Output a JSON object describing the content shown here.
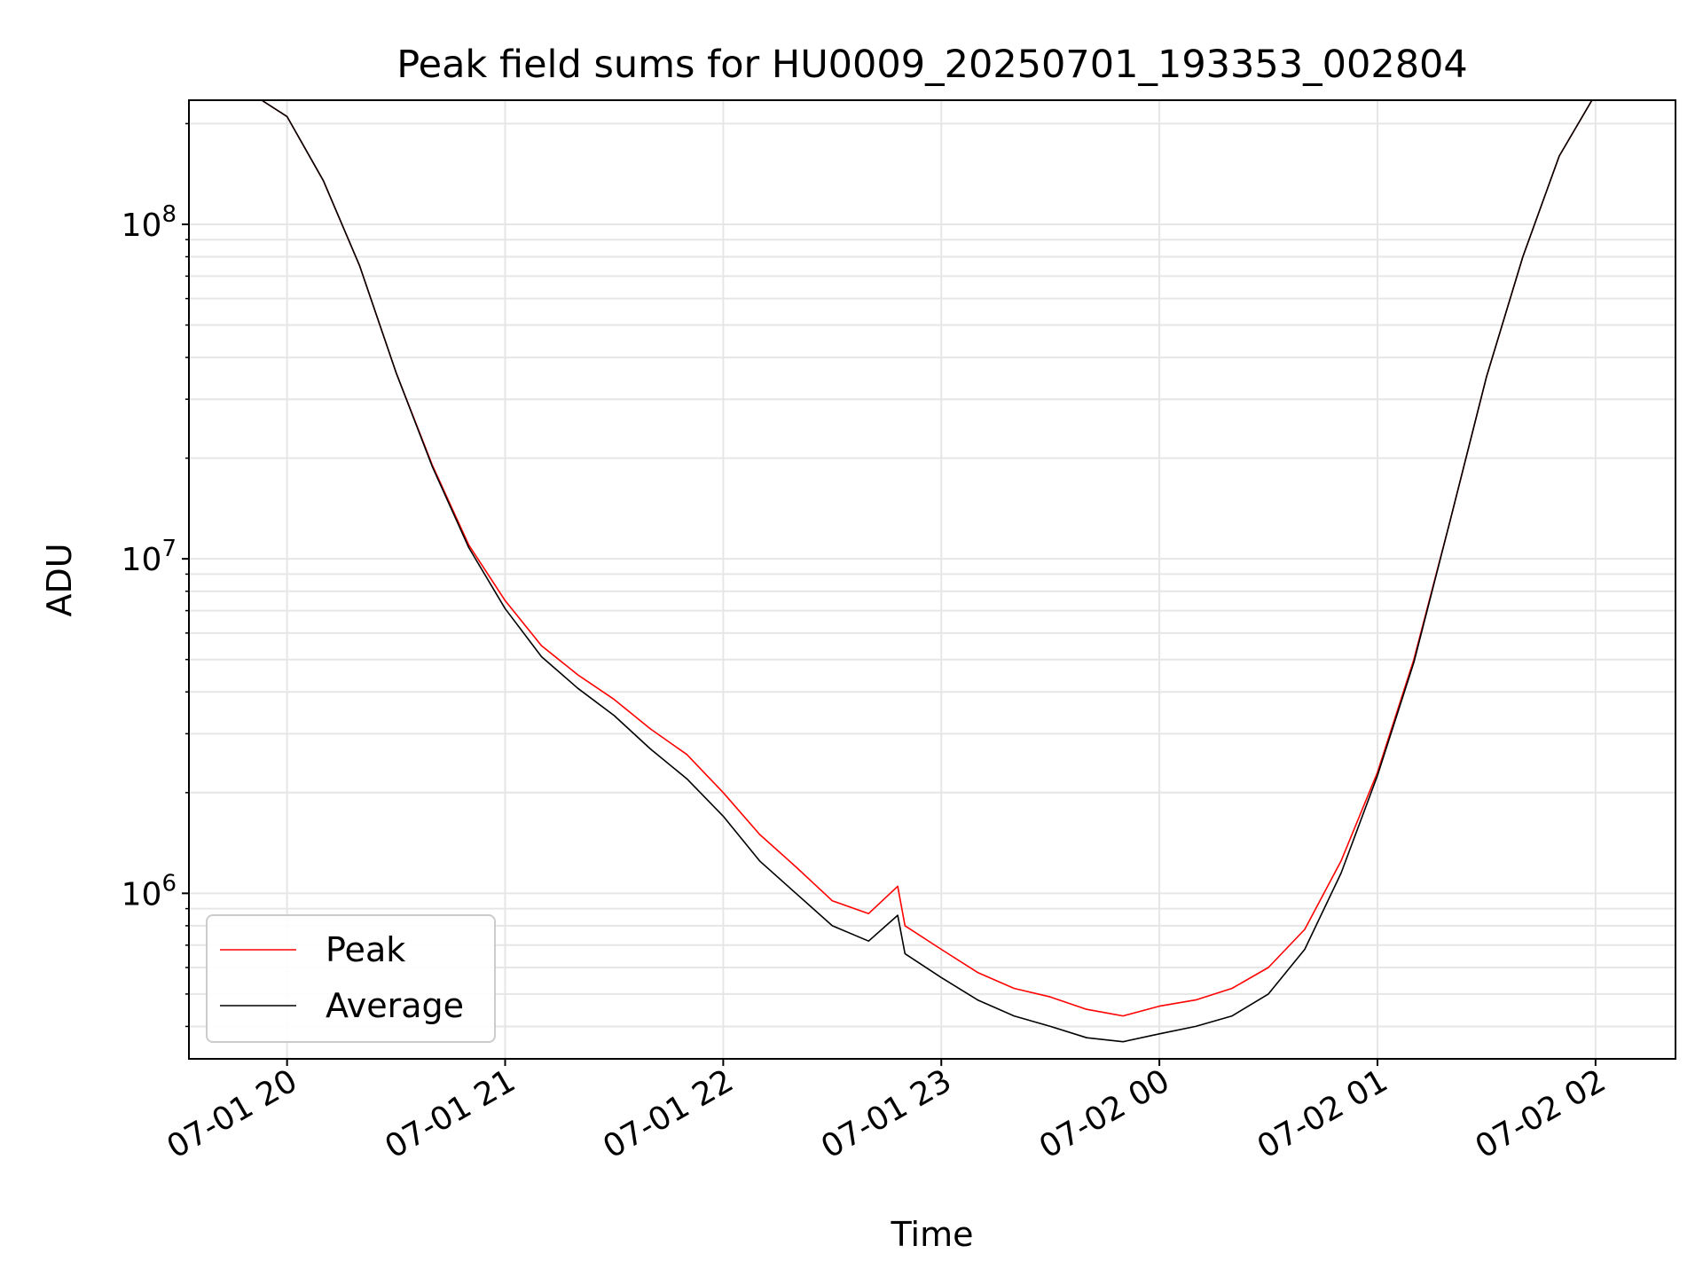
{
  "chart_data": {
    "type": "line",
    "title": "Peak field sums for HU0009_20250701_193353_002804",
    "xlabel": "Time",
    "ylabel": "ADU",
    "x_ticks": [
      "07-01 20",
      "07-01 21",
      "07-01 22",
      "07-01 23",
      "07-02 00",
      "07-02 01",
      "07-02 02"
    ],
    "y_ticks": [
      {
        "base": "10",
        "exp": "6",
        "value": 1000000
      },
      {
        "base": "10",
        "exp": "7",
        "value": 10000000
      },
      {
        "base": "10",
        "exp": "8",
        "value": 100000000
      }
    ],
    "x_range": [
      "2025-07-01 19:33",
      "2025-07-02 02:22"
    ],
    "y_scale": "log",
    "ylim": [
      320000,
      235000000
    ],
    "grid": true,
    "legend_position": "lower-left",
    "series": [
      {
        "name": "Peak",
        "color": "#ff0000",
        "x": [
          "2025-07-01 19:53",
          "2025-07-01 20:00",
          "2025-07-01 20:10",
          "2025-07-01 20:20",
          "2025-07-01 20:30",
          "2025-07-01 20:40",
          "2025-07-01 20:50",
          "2025-07-01 21:00",
          "2025-07-01 21:10",
          "2025-07-01 21:20",
          "2025-07-01 21:30",
          "2025-07-01 21:40",
          "2025-07-01 21:50",
          "2025-07-01 22:00",
          "2025-07-01 22:10",
          "2025-07-01 22:20",
          "2025-07-01 22:30",
          "2025-07-01 22:40",
          "2025-07-01 22:48",
          "2025-07-01 22:50",
          "2025-07-01 23:00",
          "2025-07-01 23:10",
          "2025-07-01 23:20",
          "2025-07-01 23:30",
          "2025-07-01 23:40",
          "2025-07-01 23:50",
          "2025-07-02 00:00",
          "2025-07-02 00:10",
          "2025-07-02 00:20",
          "2025-07-02 00:30",
          "2025-07-02 00:40",
          "2025-07-02 00:50",
          "2025-07-02 01:00",
          "2025-07-02 01:10",
          "2025-07-02 01:20",
          "2025-07-02 01:30",
          "2025-07-02 01:40",
          "2025-07-02 01:50",
          "2025-07-02 01:59"
        ],
        "values": [
          235000000,
          210000000,
          135000000,
          75000000,
          36000000,
          19000000,
          11000000,
          7500000,
          5500000,
          4500000,
          3800000,
          3100000,
          2600000,
          2000000,
          1500000,
          1200000,
          950000,
          870000,
          1050000,
          800000,
          680000,
          580000,
          520000,
          490000,
          450000,
          430000,
          460000,
          480000,
          520000,
          600000,
          780000,
          1250000,
          2300000,
          5000000,
          13000000,
          35000000,
          80000000,
          160000000,
          235000000
        ]
      },
      {
        "name": "Average",
        "color": "#000000",
        "x": [
          "2025-07-01 19:53",
          "2025-07-01 20:00",
          "2025-07-01 20:10",
          "2025-07-01 20:20",
          "2025-07-01 20:30",
          "2025-07-01 20:40",
          "2025-07-01 20:50",
          "2025-07-01 21:00",
          "2025-07-01 21:10",
          "2025-07-01 21:20",
          "2025-07-01 21:30",
          "2025-07-01 21:40",
          "2025-07-01 21:50",
          "2025-07-01 22:00",
          "2025-07-01 22:10",
          "2025-07-01 22:20",
          "2025-07-01 22:30",
          "2025-07-01 22:40",
          "2025-07-01 22:48",
          "2025-07-01 22:50",
          "2025-07-01 23:00",
          "2025-07-01 23:10",
          "2025-07-01 23:20",
          "2025-07-01 23:30",
          "2025-07-01 23:40",
          "2025-07-01 23:50",
          "2025-07-02 00:00",
          "2025-07-02 00:10",
          "2025-07-02 00:20",
          "2025-07-02 00:30",
          "2025-07-02 00:40",
          "2025-07-02 00:50",
          "2025-07-02 01:00",
          "2025-07-02 01:10",
          "2025-07-02 01:20",
          "2025-07-02 01:30",
          "2025-07-02 01:40",
          "2025-07-02 01:50",
          "2025-07-02 01:59"
        ],
        "values": [
          235000000,
          210000000,
          135000000,
          75000000,
          36000000,
          18800000,
          10800000,
          7100000,
          5100000,
          4100000,
          3400000,
          2700000,
          2200000,
          1700000,
          1250000,
          1000000,
          800000,
          720000,
          860000,
          660000,
          560000,
          480000,
          430000,
          400000,
          370000,
          360000,
          380000,
          400000,
          430000,
          500000,
          680000,
          1150000,
          2250000,
          4900000,
          13000000,
          35000000,
          80000000,
          160000000,
          235000000
        ]
      }
    ]
  }
}
